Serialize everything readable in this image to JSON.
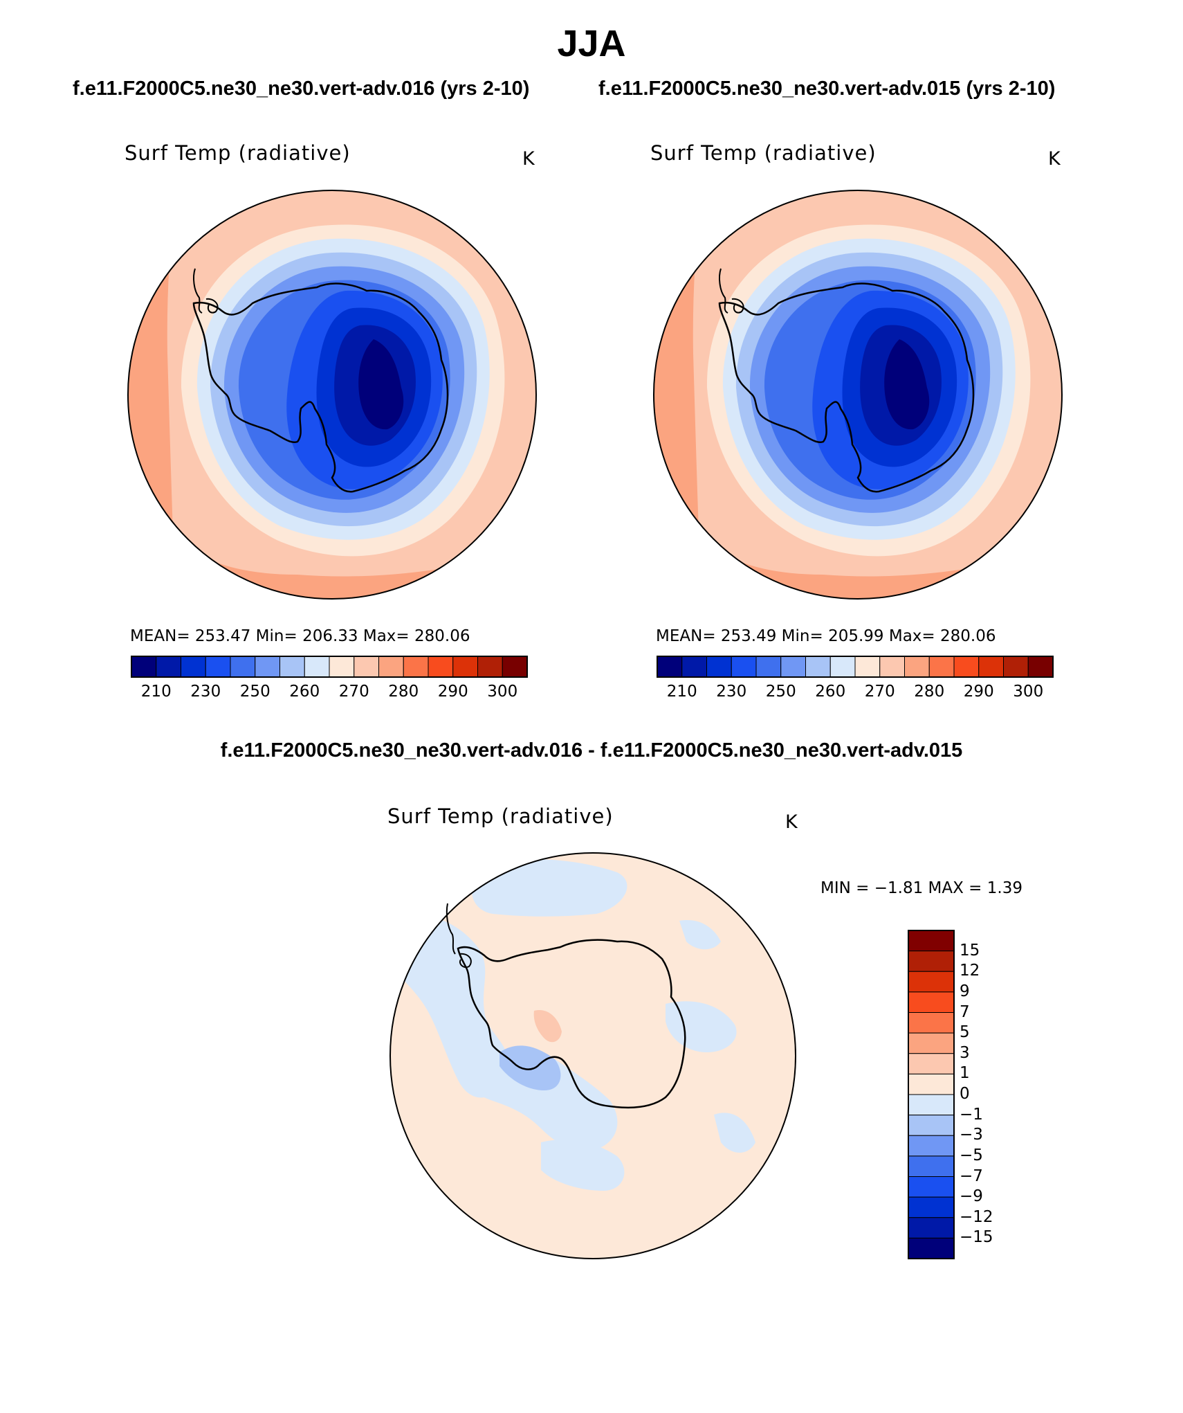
{
  "title": "JJA",
  "case_titles": {
    "left": "f.e11.F2000C5.ne30_ne30.vert-adv.016 (yrs 2-10)",
    "right": "f.e11.F2000C5.ne30_ne30.vert-adv.015 (yrs 2-10)"
  },
  "difference_title": "f.e11.F2000C5.ne30_ne30.vert-adv.016 - f.e11.F2000C5.ne30_ne30.vert-adv.015",
  "panels": {
    "left": {
      "variable": "Surf Temp (radiative)",
      "units": "K",
      "stats": "MEAN= 253.47   Min= 206.33   Max= 280.06"
    },
    "right": {
      "variable": "Surf Temp (radiative)",
      "units": "K",
      "stats": "MEAN= 253.49   Min= 205.99   Max= 280.06"
    },
    "diff": {
      "variable": "Surf Temp (radiative)",
      "units": "K",
      "minmax": "MIN =   −1.81  MAX =    1.39"
    }
  },
  "abs_colorbar": {
    "colors": [
      "#00007a",
      "#0019a8",
      "#0032d2",
      "#1a50f0",
      "#3f70ee",
      "#7097f4",
      "#a8c4f6",
      "#d8e8fa",
      "#fde8d8",
      "#fcc8b0",
      "#fba480",
      "#fb7448",
      "#f84c1e",
      "#dc3208",
      "#b02006",
      "#780000"
    ],
    "labels": [
      "210",
      "230",
      "250",
      "260",
      "270",
      "280",
      "290",
      "300"
    ]
  },
  "diff_colorbar": {
    "colors_top_to_bottom": [
      "#800000",
      "#b02006",
      "#dc3208",
      "#f84c1e",
      "#fb7448",
      "#fba480",
      "#fcc8b0",
      "#fde8d8",
      "#d8e8fa",
      "#a8c4f6",
      "#7097f4",
      "#3f70ee",
      "#1a50f0",
      "#0032d2",
      "#0019a8",
      "#00007a"
    ],
    "labels": [
      "15",
      "12",
      "9",
      "7",
      "5",
      "3",
      "1",
      "0",
      "−1",
      "−3",
      "−5",
      "−7",
      "−9",
      "−12",
      "−15"
    ]
  }
}
